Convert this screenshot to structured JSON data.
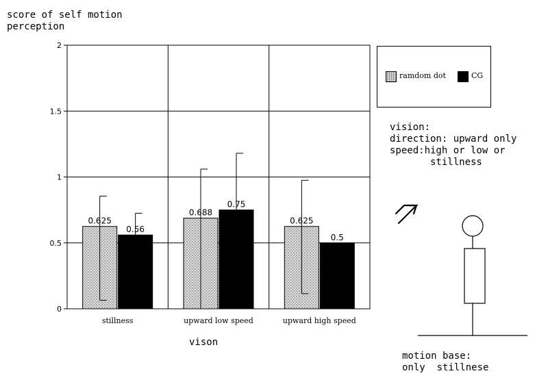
{
  "chart_data": {
    "type": "bar",
    "title": "",
    "ylabel": "score of self motion\nperception",
    "xlabel": "vison",
    "ylim": [
      0,
      2
    ],
    "yticks": [
      "0",
      "0.5",
      "1",
      "1.5",
      "2"
    ],
    "ytick_values": [
      0,
      0.5,
      1,
      1.5,
      2
    ],
    "categories": [
      "stillness",
      "upward low speed",
      "upward high speed"
    ],
    "series": [
      {
        "name": "ramdom dot",
        "values": [
          0.625,
          0.688,
          0.625
        ],
        "labels": [
          "0.625",
          "0.688",
          "0.625"
        ],
        "error_low": [
          0.065,
          0,
          0.115
        ],
        "error_high": [
          0.855,
          1.06,
          0.975
        ]
      },
      {
        "name": "CG",
        "values": [
          0.56,
          0.75,
          0.5
        ],
        "labels": [
          "0.56",
          "0.75",
          "0.5"
        ],
        "error_low": [
          null,
          null,
          null
        ],
        "error_high": [
          0.725,
          1.18,
          null
        ]
      }
    ],
    "grid": true,
    "legend_position": "right"
  },
  "annotations": {
    "vision_note": "vision:\ndirection: upward only\nspeed:high or low or\n       stillness",
    "arrow_icon": "upward-diagonal-arrow",
    "motion_base_note": "motion base:\nonly  stillnese"
  },
  "colors": {
    "random_dot_fill": "#dcdcdc",
    "cg_fill": "#000000",
    "axis": "#000000"
  }
}
